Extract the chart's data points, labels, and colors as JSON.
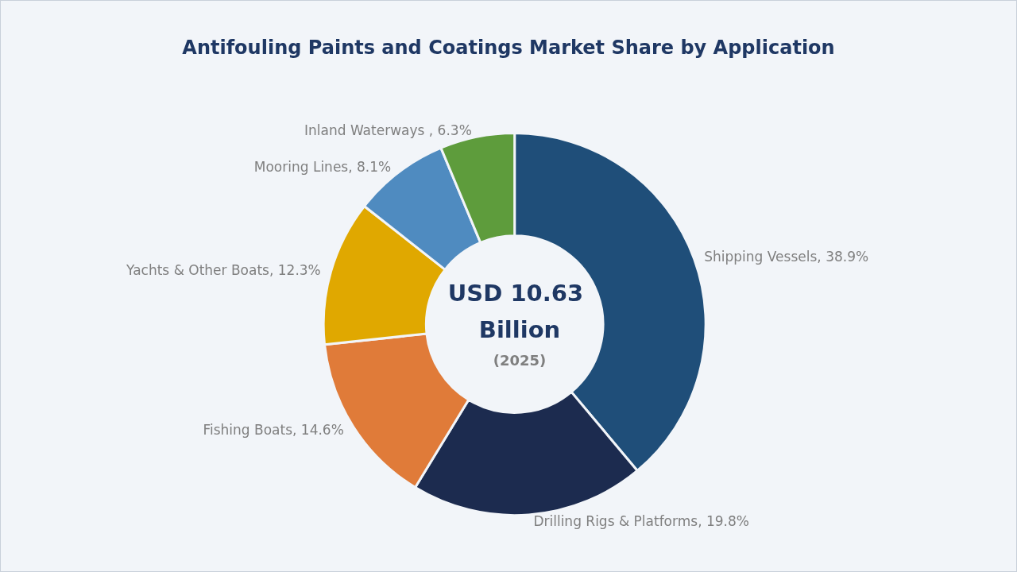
{
  "chart_data": {
    "type": "donut",
    "title": "Antifouling Paints and Coatings Market Share by Application",
    "categories": [
      "Shipping Vessels",
      "Drilling Rigs & Platforms",
      "Fishing Boats",
      "Yachts & Other Boats",
      "Mooring Lines",
      "Inland Waterways "
    ],
    "values": [
      38.9,
      19.8,
      14.6,
      12.3,
      8.1,
      6.3
    ],
    "value_labels": [
      "38.9%",
      "19.8%",
      "14.6%",
      "12.3%",
      "8.1%",
      "6.3%"
    ],
    "colors": [
      "#1f4e79",
      "#1c2b4f",
      "#e07b39",
      "#e0a800",
      "#4f8bc0",
      "#5e9c3c"
    ],
    "annotations": [
      "USD 10.63 Billion",
      "(2025)"
    ],
    "legend": false
  }
}
